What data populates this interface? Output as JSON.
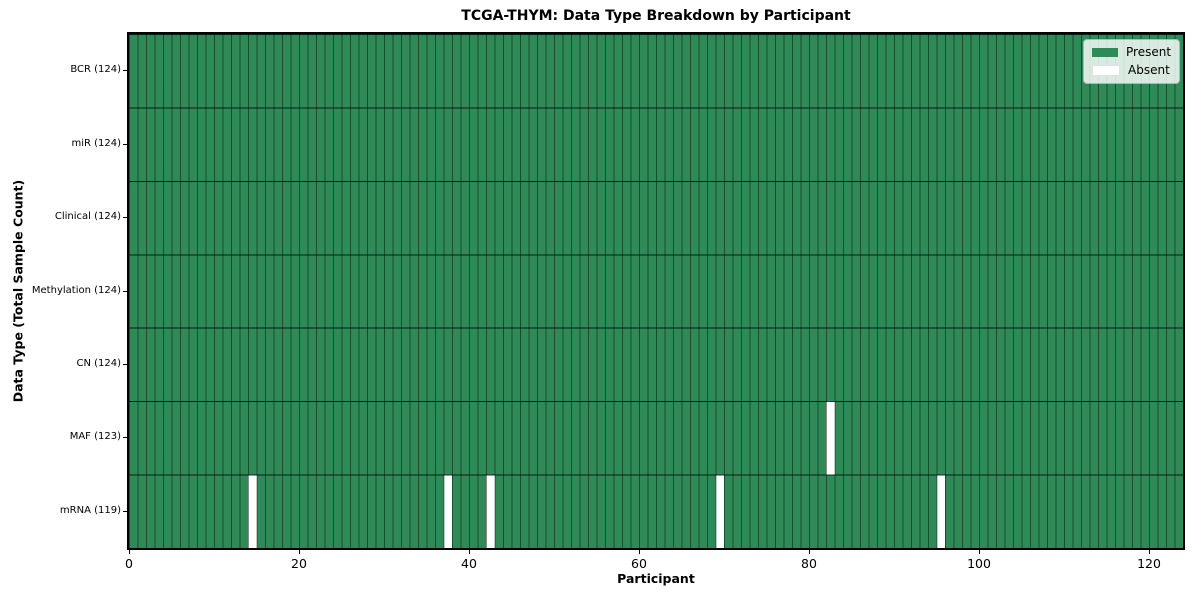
{
  "chart_data": {
    "type": "heatmap",
    "title": "TCGA-THYM: Data Type Breakdown by Participant",
    "xlabel": "Participant",
    "ylabel": "Data Type (Total Sample Count)",
    "xlim": [
      0,
      124
    ],
    "x_ticks": [
      0,
      20,
      40,
      60,
      80,
      100,
      120
    ],
    "n_participants": 124,
    "grid": true,
    "legend": {
      "position": "upper-right",
      "entries": [
        {
          "label": "Present",
          "color": "#2e8b57"
        },
        {
          "label": "Absent",
          "color": "#ffffff"
        }
      ]
    },
    "rows": [
      {
        "label": "BCR (124)",
        "present_count": 124,
        "absent_participants": []
      },
      {
        "label": "miR (124)",
        "present_count": 124,
        "absent_participants": []
      },
      {
        "label": "Clinical (124)",
        "present_count": 124,
        "absent_participants": []
      },
      {
        "label": "Methylation (124)",
        "present_count": 124,
        "absent_participants": []
      },
      {
        "label": "CN (124)",
        "present_count": 124,
        "absent_participants": []
      },
      {
        "label": "MAF (123)",
        "present_count": 123,
        "absent_participants": [
          82
        ]
      },
      {
        "label": "mRNA (119)",
        "present_count": 119,
        "absent_participants": [
          14,
          37,
          42,
          69,
          95
        ]
      }
    ],
    "colors": {
      "present": "#2e8b57",
      "absent": "#ffffff",
      "row_separator": "rgba(0,0,0,0.8)",
      "cell_separator": "rgba(0,0,0,0.45)",
      "spine": "#000000"
    }
  }
}
